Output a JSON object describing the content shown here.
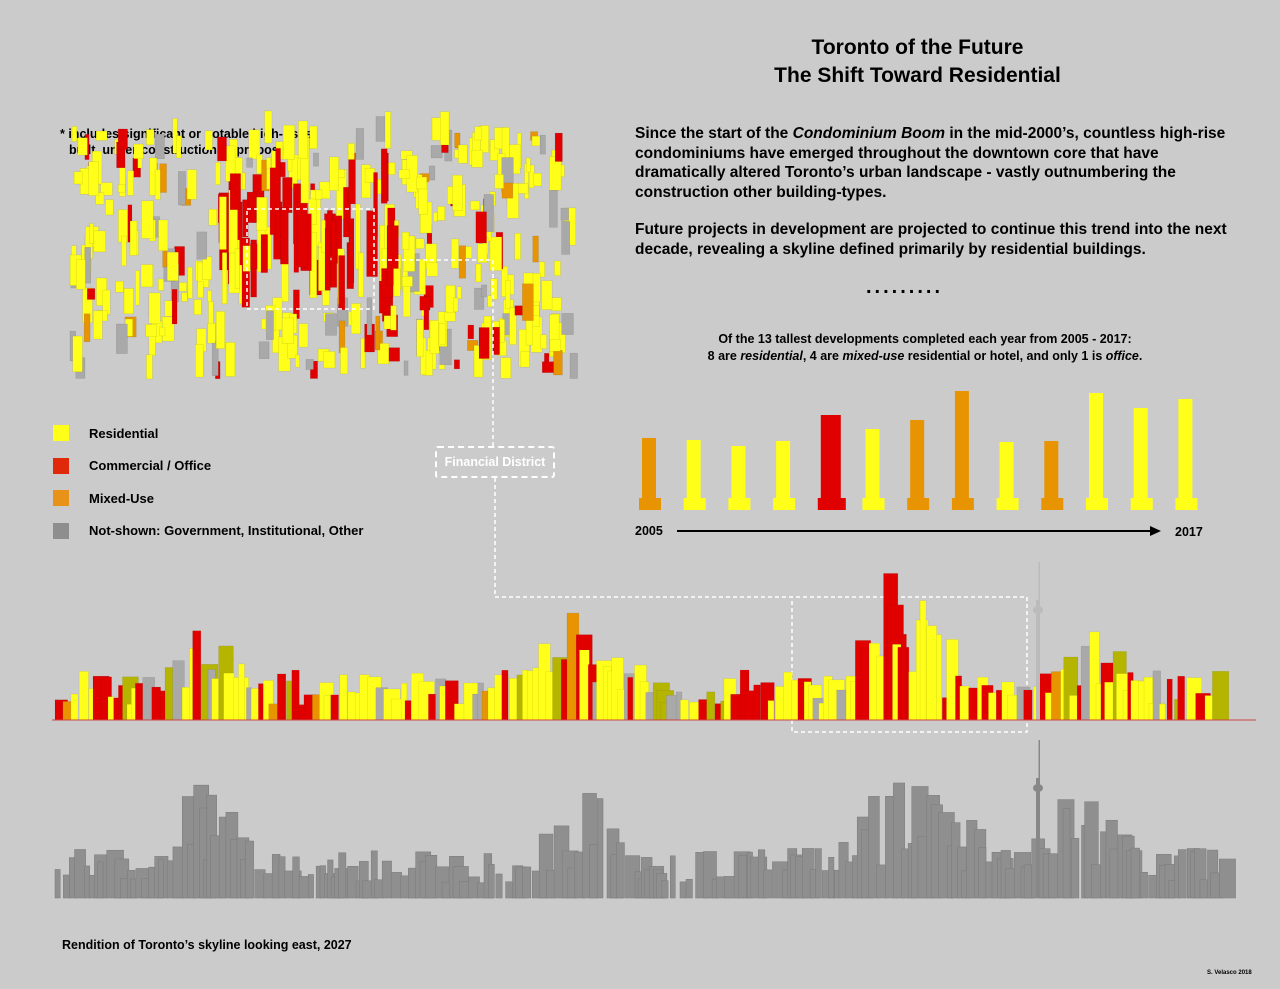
{
  "title": {
    "line1": "Toronto of the Future",
    "line2": "The Shift Toward Residential"
  },
  "intro": {
    "p1_pre": "Since the start of the ",
    "p1_em": "Condominium Boom",
    "p1_post": " in the mid-2000’s, countless high-rise condominiums have emerged throughout the downtown core that have dramatically altered Toronto’s urban landscape - vastly outnumbering the construction other building-types.",
    "p2": "Future projects in development are projected to continue this trend into the next decade, revealing a skyline defined primarily by residential buildings."
  },
  "separator": ".........",
  "note": {
    "line1": "* includes significant or notable high-rises:",
    "line2": "built, under-construction or proposed"
  },
  "legend": [
    {
      "label": "Residential",
      "color": "#ffff1a"
    },
    {
      "label": "Commercial / Office",
      "color": "#e0290a"
    },
    {
      "label": "Mixed-Use",
      "color": "#e8921a"
    },
    {
      "label": "Not-shown: Government, Institutional, Other",
      "color": "#8e8e8e"
    }
  ],
  "colors": {
    "residential": "#ffff1a",
    "office": "#e00000",
    "mixed": "#e89400",
    "other": "#a9a9a9",
    "background": "#cbcbcb"
  },
  "callout": "Financial District",
  "stat": {
    "line1": "Of the 13 tallest developments completed each year from 2005 - 2017:",
    "l2a": "8 are ",
    "l2b": "residential",
    "l2c": ", 4 are ",
    "l2d": "mixed-use",
    "l2e": " residential or hotel, and only 1 is ",
    "l2f": "office",
    "l2g": "."
  },
  "timeline": {
    "start": "2005",
    "end": "2017"
  },
  "chart_data": {
    "type": "bar",
    "categories": [
      "2005",
      "2006",
      "2007",
      "2008",
      "2009",
      "2010",
      "2011",
      "2012",
      "2013",
      "2014",
      "2015",
      "2016",
      "2017"
    ],
    "types": [
      "mixed",
      "residential",
      "residential",
      "residential",
      "office",
      "residential",
      "mixed",
      "mixed",
      "residential",
      "mixed",
      "residential",
      "residential",
      "residential"
    ],
    "relative_height": [
      72,
      70,
      64,
      69,
      95,
      81,
      90,
      119,
      68,
      69,
      117,
      102,
      111
    ]
  },
  "caption": "Rendition of Toronto’s skyline looking east, 2027",
  "credit": "S. Velasco 2018"
}
